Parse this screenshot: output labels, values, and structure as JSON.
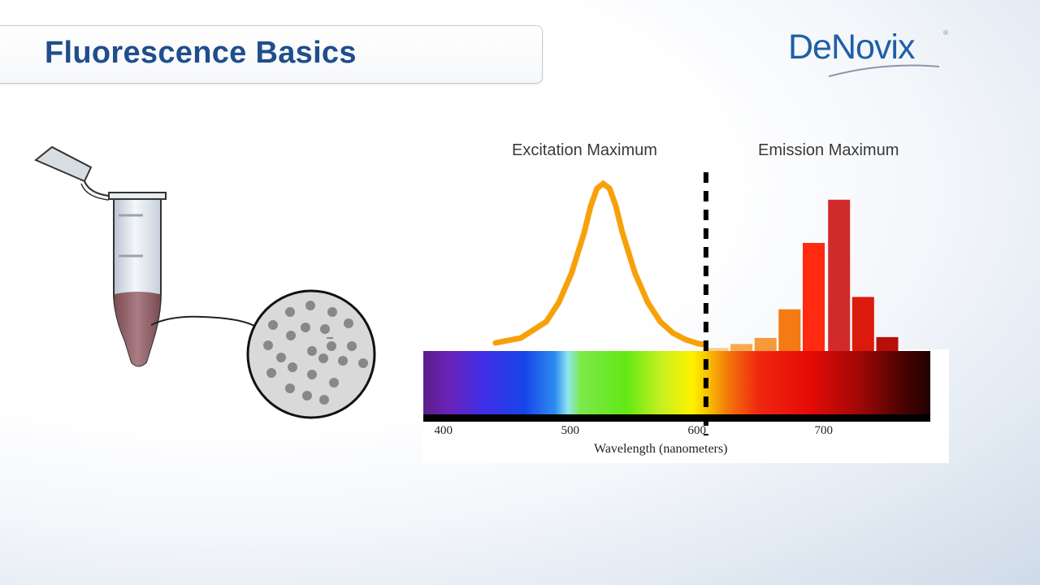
{
  "slide": {
    "title": "Fluorescence Basics",
    "logo_text": "DeNovix",
    "logo_mark": "®"
  },
  "labels": {
    "excitation": "Excitation Maximum",
    "emission": "Emission Maximum"
  },
  "colors": {
    "title": "#1f4e8c",
    "brand": "#1f5fa8",
    "excitation_curve": "#f7a10a",
    "liquid": "#8c5a62",
    "particle": "#888888"
  },
  "chart_data": {
    "type": "bar",
    "xlabel": "Wavelength (nanometers)",
    "ylabel": "",
    "x_ticks": [
      400,
      500,
      600,
      700
    ],
    "xlim": [
      383,
      783
    ],
    "excitation_curve": {
      "x": [
        440,
        460,
        480,
        490,
        500,
        510,
        515,
        520,
        525,
        530,
        535,
        540,
        550,
        560,
        570,
        580,
        590,
        600,
        605
      ],
      "y": [
        0.02,
        0.05,
        0.15,
        0.27,
        0.45,
        0.7,
        0.86,
        0.97,
        1.0,
        0.97,
        0.86,
        0.7,
        0.45,
        0.27,
        0.15,
        0.08,
        0.04,
        0.015,
        0.01
      ]
    },
    "divider_x": 606,
    "emission_bars": [
      {
        "x": 615,
        "value": 0.02,
        "color": "#f6cf8e"
      },
      {
        "x": 634,
        "value": 0.045,
        "color": "#f7a94e"
      },
      {
        "x": 653,
        "value": 0.085,
        "color": "#f59a3a"
      },
      {
        "x": 672,
        "value": 0.27,
        "color": "#f47a14"
      },
      {
        "x": 691,
        "value": 0.7,
        "color": "#ff2a10"
      },
      {
        "x": 711,
        "value": 0.98,
        "color": "#d12a2a"
      },
      {
        "x": 730,
        "value": 0.35,
        "color": "#dc1a0c"
      },
      {
        "x": 749,
        "value": 0.09,
        "color": "#b80f0a"
      }
    ]
  }
}
